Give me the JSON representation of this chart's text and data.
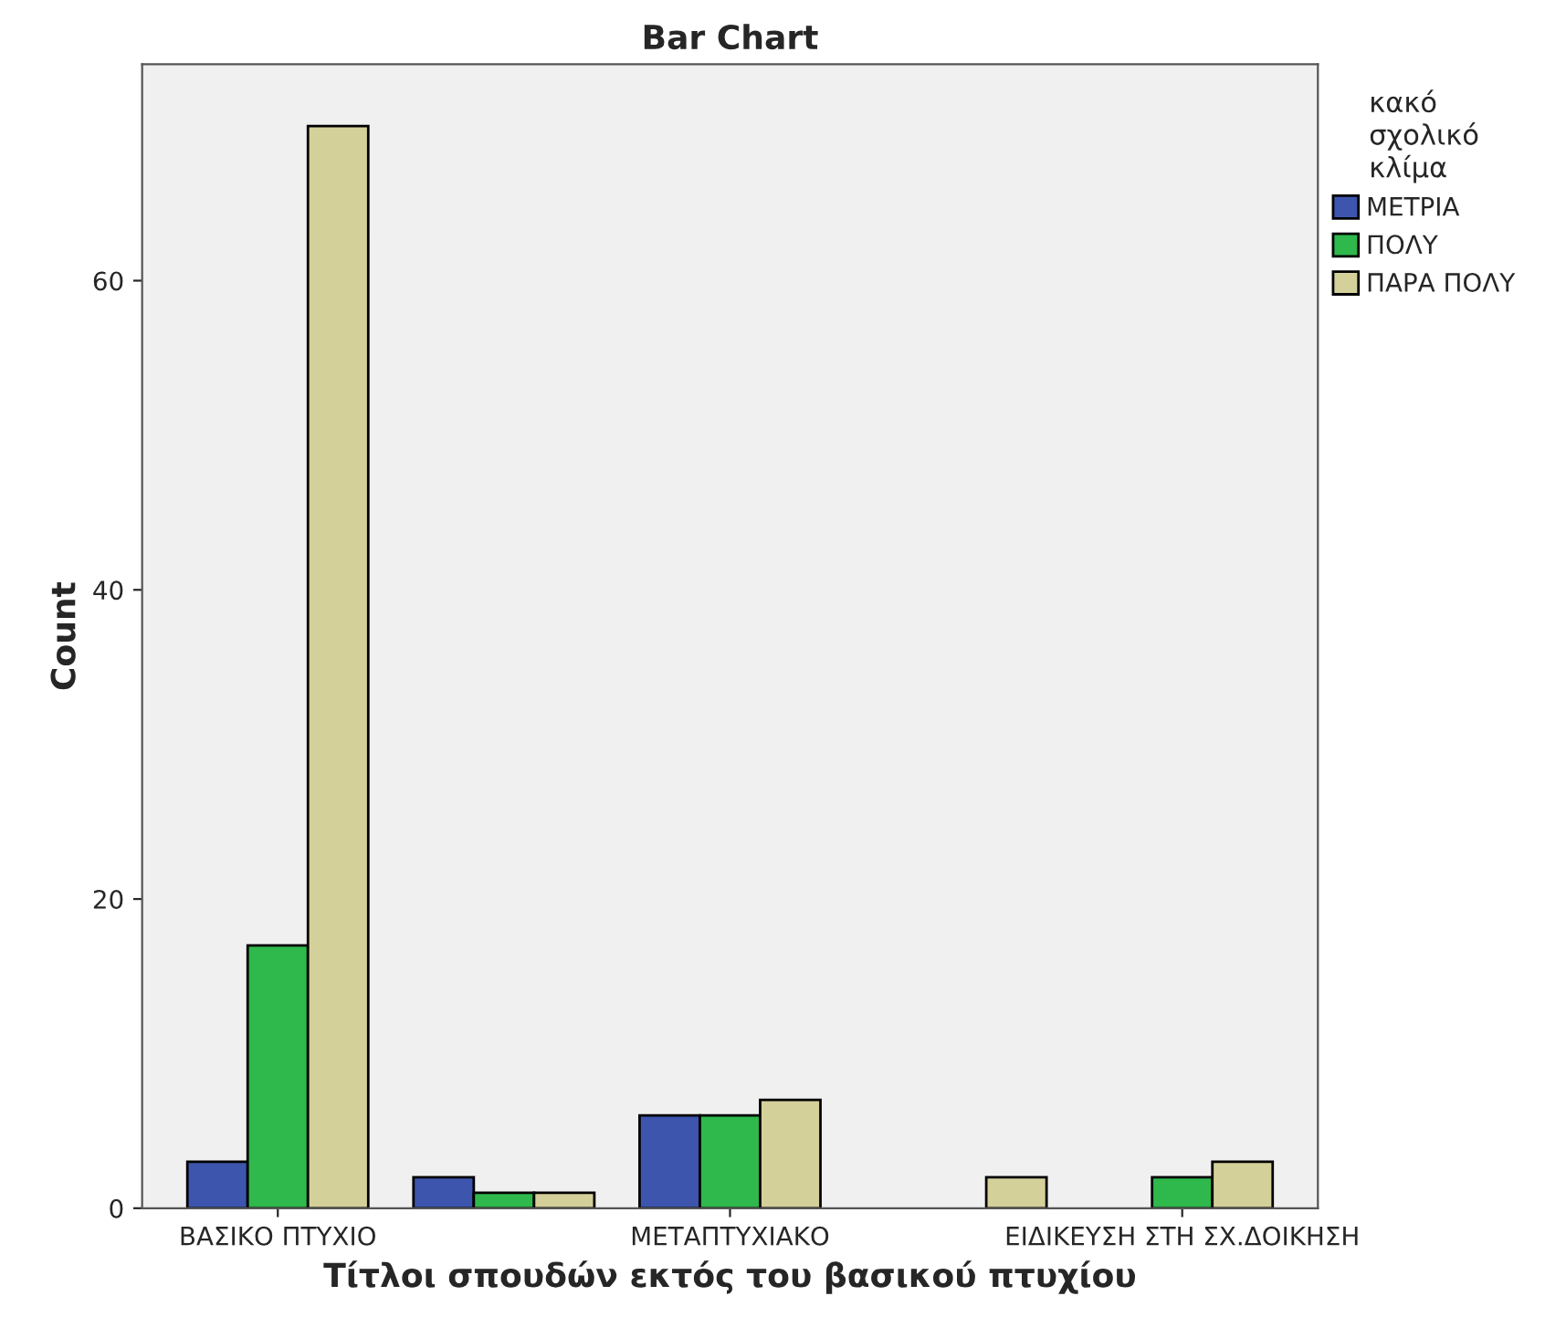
{
  "chart_data": {
    "type": "bar",
    "title": "Bar Chart",
    "xlabel": "Τίτλοι σπουδών εκτός του βασικού πτυχίου",
    "ylabel": "Count",
    "legend_title": "κακό\nσχολικό\nκλίμα",
    "categories": [
      "ΒΑΣΙΚΟ ΠΤΥΧΙΟ",
      null,
      "ΜΕΤΑΠΤΥΧΙΑΚΟ",
      null,
      "ΕΙΔΙΚΕΥΣΗ ΣΤΗ ΣΧ.ΔΟΙΚΗΣΗ"
    ],
    "series": [
      {
        "name": "ΜΕΤΡΙΑ",
        "color": "#3d55ad",
        "values": [
          3,
          2,
          6,
          null,
          null
        ]
      },
      {
        "name": "ΠΟΛΥ",
        "color": "#2fb84b",
        "values": [
          17,
          1,
          6,
          null,
          2
        ]
      },
      {
        "name": "ΠΑΡΑ ΠΟΛΥ",
        "color": "#d4d09a",
        "values": [
          70,
          1,
          7,
          2,
          3
        ]
      }
    ],
    "ylim": [
      0,
      74
    ],
    "yticks": [
      0,
      20,
      40,
      60
    ],
    "grid": false,
    "legend": "right"
  }
}
